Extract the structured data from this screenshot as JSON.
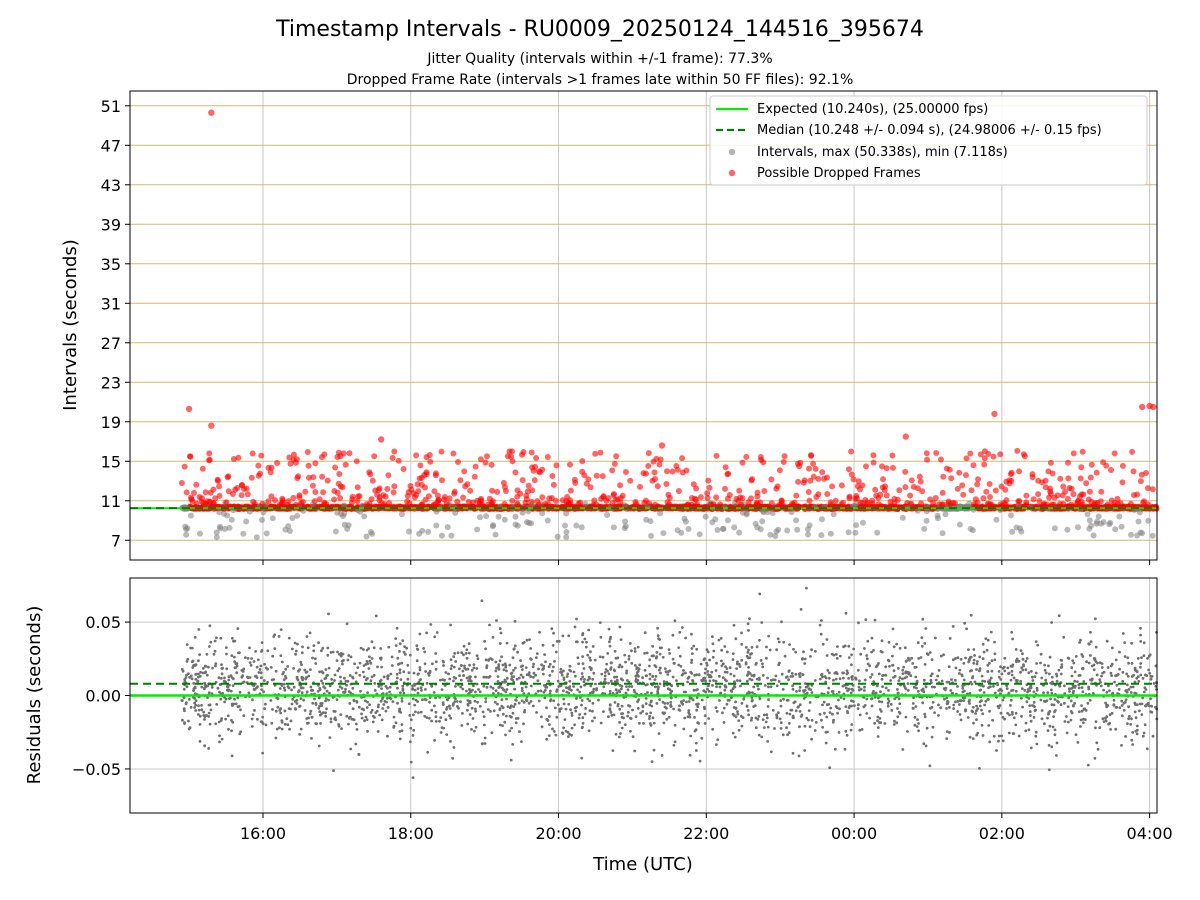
{
  "chart_data": [
    {
      "type": "scatter",
      "panel": "intervals",
      "title": "Timestamp Intervals - RU0009_20250124_144516_395674",
      "subtitle_lines": [
        "Jitter Quality (intervals within +/-1 frame): 77.3%",
        "Dropped Frame Rate (intervals >1 frames late within 50 FF files): 92.1%"
      ],
      "ylabel": "Intervals (seconds)",
      "ylim": [
        5.0,
        52.5
      ],
      "yticks": [
        7,
        11,
        15,
        19,
        23,
        27,
        31,
        35,
        39,
        43,
        47,
        51
      ],
      "xlim_hours": [
        14.2,
        28.1
      ],
      "expected_interval": 10.24,
      "median_interval": 10.248,
      "max_interval": 50.338,
      "min_interval": 7.118,
      "legend": {
        "placement": "top-right",
        "entries": [
          {
            "label": "Expected (10.240s), (25.00000 fps)",
            "style": "line",
            "color": "#00ee00"
          },
          {
            "label": "Median (10.248 +/- 0.094 s), (24.98006 +/- 0.15 fps)",
            "style": "dashed",
            "color": "#008000"
          },
          {
            "label": "Intervals, max (50.338s), min (7.118s)",
            "style": "dot",
            "color": "#808080"
          },
          {
            "label": "Possible Dropped Frames",
            "style": "dot",
            "color": "#ff0000"
          }
        ]
      },
      "notable_points": [
        {
          "x": 15.3,
          "y": 50.3,
          "series": "Possible Dropped Frames"
        },
        {
          "x": 15.0,
          "y": 20.3,
          "series": "Possible Dropped Frames"
        },
        {
          "x": 15.3,
          "y": 18.6,
          "series": "Possible Dropped Frames"
        },
        {
          "x": 17.6,
          "y": 17.2,
          "series": "Possible Dropped Frames"
        },
        {
          "x": 21.4,
          "y": 16.6,
          "series": "Possible Dropped Frames"
        },
        {
          "x": 24.7,
          "y": 17.5,
          "series": "Possible Dropped Frames"
        },
        {
          "x": 25.9,
          "y": 19.8,
          "series": "Possible Dropped Frames"
        },
        {
          "x": 27.9,
          "y": 20.5,
          "series": "Possible Dropped Frames"
        },
        {
          "x": 28.0,
          "y": 20.6,
          "series": "Possible Dropped Frames"
        },
        {
          "x": 28.05,
          "y": 20.5,
          "series": "Possible Dropped Frames"
        }
      ]
    },
    {
      "type": "scatter",
      "panel": "residuals",
      "xlabel": "Time (UTC)",
      "ylabel": "Residuals (seconds)",
      "ylim": [
        -0.08,
        0.08
      ],
      "yticks": [
        -0.05,
        0.0,
        0.05
      ],
      "ytick_labels": [
        "−0.05",
        "0.00",
        "0.05"
      ],
      "xticks_hours": [
        16,
        18,
        20,
        22,
        24,
        26,
        28
      ],
      "xtick_labels": [
        "16:00",
        "18:00",
        "20:00",
        "22:00",
        "00:00",
        "02:00",
        "04:00"
      ],
      "expected_residual": 0.0,
      "median_residual": 0.008
    }
  ]
}
